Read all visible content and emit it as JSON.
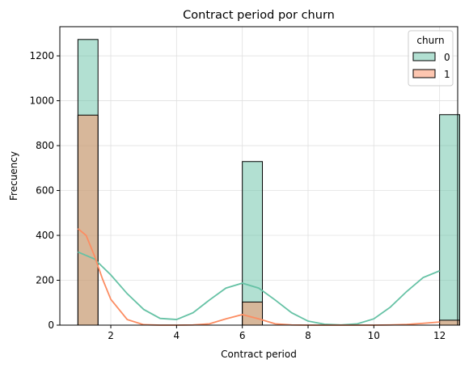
{
  "chart_data": {
    "type": "bar",
    "title": "Contract period por churn",
    "xlabel": "Contract period",
    "ylabel": "Frecuency",
    "xlim": [
      0.45,
      12.55
    ],
    "ylim": [
      0,
      1330
    ],
    "x_ticks": [
      2,
      4,
      6,
      8,
      10,
      12
    ],
    "y_ticks": [
      0,
      200,
      400,
      600,
      800,
      1000,
      1200
    ],
    "grid": true,
    "legend_title": "churn",
    "legend_position": "top-right",
    "bin_width": 0.6111,
    "series": [
      {
        "name": "0",
        "color": "#66c2a5",
        "bars": [
          {
            "x": 1,
            "value": 1273
          },
          {
            "x": 6,
            "value": 729
          },
          {
            "x": 12,
            "value": 938
          }
        ],
        "kde": [
          [
            1.0,
            326
          ],
          [
            1.5,
            295
          ],
          [
            2.0,
            224
          ],
          [
            2.5,
            140
          ],
          [
            3.0,
            70
          ],
          [
            3.5,
            30
          ],
          [
            4.0,
            25
          ],
          [
            4.5,
            55
          ],
          [
            5.0,
            112
          ],
          [
            5.5,
            165
          ],
          [
            6.0,
            187
          ],
          [
            6.5,
            165
          ],
          [
            7.0,
            112
          ],
          [
            7.5,
            55
          ],
          [
            8.0,
            18
          ],
          [
            8.5,
            4
          ],
          [
            9.0,
            1
          ],
          [
            9.5,
            6
          ],
          [
            10.0,
            28
          ],
          [
            10.5,
            80
          ],
          [
            11.0,
            150
          ],
          [
            11.5,
            212
          ],
          [
            12.0,
            242
          ]
        ]
      },
      {
        "name": "1",
        "color": "#fc8d62",
        "bars": [
          {
            "x": 1,
            "value": 936
          },
          {
            "x": 6,
            "value": 103
          },
          {
            "x": 12,
            "value": 22
          }
        ],
        "kde": [
          [
            1.0,
            430
          ],
          [
            1.25,
            400
          ],
          [
            1.5,
            310
          ],
          [
            1.75,
            205
          ],
          [
            2.0,
            115
          ],
          [
            2.5,
            25
          ],
          [
            3.0,
            2
          ],
          [
            3.5,
            0
          ],
          [
            4.0,
            0
          ],
          [
            4.5,
            1
          ],
          [
            5.0,
            6
          ],
          [
            5.5,
            28
          ],
          [
            6.0,
            47
          ],
          [
            6.5,
            28
          ],
          [
            7.0,
            6
          ],
          [
            7.5,
            1
          ],
          [
            8.0,
            0
          ],
          [
            10.0,
            0
          ],
          [
            10.5,
            1
          ],
          [
            11.0,
            3
          ],
          [
            11.5,
            8
          ],
          [
            12.0,
            14
          ]
        ]
      }
    ]
  }
}
